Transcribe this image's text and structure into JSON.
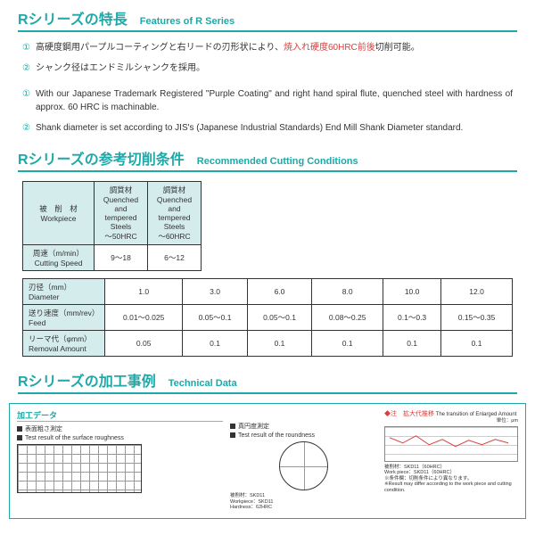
{
  "sections": {
    "features": {
      "jp": "Rシリーズの特長",
      "en": "Features of R Series"
    },
    "cutting": {
      "jp": "Rシリーズの参考切削条件",
      "en": "Recommended Cutting Conditions"
    },
    "tech": {
      "jp": "Rシリーズの加工事例",
      "en": "Technical Data"
    }
  },
  "features": {
    "jp1_a": "高硬度鋼用パープルコーティングと右リードの刃形状により、",
    "jp1_b": "焼入れ硬度60HRC前後",
    "jp1_c": "切削可能。",
    "jp2": "シャンク径はエンドミルシャンクを採用。",
    "en1": "With our Japanese Trademark Registered \"Purple Coating\" and right hand spiral flute, quenched steel with hardness of approx. 60 HRC is machinable.",
    "en2": "Shank diameter is set according to JIS's (Japanese Industrial Standards) End Mill Shank Diameter standard."
  },
  "table1": {
    "h_workpiece": "被　削　材\nWorkpiece",
    "h_c1": "調質材\nQuenched and\ntempered Steels\n～50HRC",
    "h_c2": "調質材\nQuenched and\ntempered Steels\n～60HRC",
    "r1_lbl": "周速（m/min）\nCutting Speed",
    "r1_c1": "9～18",
    "r1_c2": "6～12"
  },
  "table2": {
    "r1_lbl": "刃径（mm）\nDiameter",
    "r2_lbl": "送り速度（mm/rev）\nFeed",
    "r3_lbl": "リーマ代（φmm）\nRemoval Amount",
    "d": [
      "1.0",
      "3.0",
      "6.0",
      "8.0",
      "10.0",
      "12.0"
    ],
    "f": [
      "0.01～0.025",
      "0.05～0.1",
      "0.05～0.1",
      "0.08～0.25",
      "0.1～0.3",
      "0.15～0.35"
    ],
    "r": [
      "0.05",
      "0.1",
      "0.1",
      "0.1",
      "0.1",
      "0.1"
    ]
  },
  "tech": {
    "header": "加工データ",
    "sub1": "表面粗さ測定",
    "sub1_en": "Test result of the surface roughness",
    "sub2": "真円度測定",
    "sub2_en": "Test result of the roundness",
    "note1": "被削材：SKD11",
    "note2": "Workpiece：SKD11",
    "note3": "Hardness：62HRC",
    "right_red": "◆注　拡大代推移",
    "right_en": "The transition of Enlarged Amount",
    "right_unit": "単位：μm",
    "right_foot1": "被削材：SKD11（60HRC）",
    "right_foot2": "Work piece：SKD11（60HRC）",
    "right_foot3": "※条件欄：切削条件により異なります。",
    "right_foot4": "※Result may differ according to the work piece and cutting condition."
  },
  "colors": {
    "teal": "#1fa8a8",
    "red": "#d84040"
  }
}
